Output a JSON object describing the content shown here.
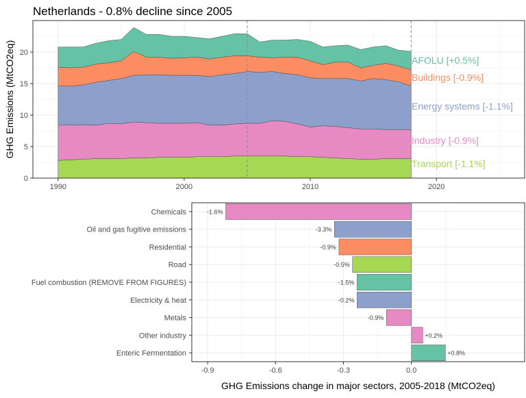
{
  "title": "Netherlands - 0.8% decline since 2005",
  "colors": {
    "AFOLU": "#66c2a5",
    "Buildings": "#fc8d62",
    "Energy": "#8da0cb",
    "Industry": "#e78ac3",
    "Transport": "#a6d854",
    "vline": "#8a8a8a"
  },
  "chart_data": [
    {
      "type": "area",
      "stacked": true,
      "ylabel": "GHG Emissions (MtCO2eq)",
      "xlim": [
        1988,
        2027
      ],
      "ylim": [
        0,
        25
      ],
      "x_ticks": [
        1990,
        2000,
        2010,
        2020
      ],
      "x_tick_labels": [
        "1990",
        "2000",
        "2010",
        "2020"
      ],
      "y_ticks": [
        0,
        5,
        10,
        15,
        20
      ],
      "y_tick_labels": [
        "0",
        "5",
        "10",
        "15",
        "20"
      ],
      "vlines": [
        2005,
        2018
      ],
      "x": [
        1990,
        1991,
        1992,
        1993,
        1994,
        1995,
        1996,
        1997,
        1998,
        1999,
        2000,
        2001,
        2002,
        2003,
        2004,
        2005,
        2006,
        2007,
        2008,
        2009,
        2010,
        2011,
        2012,
        2013,
        2014,
        2015,
        2016,
        2017,
        2018
      ],
      "series": [
        {
          "key": "Transport",
          "name": "Transport [-1.1%]",
          "values": [
            2.8,
            2.9,
            3.0,
            3.1,
            3.1,
            3.1,
            3.2,
            3.2,
            3.3,
            3.3,
            3.3,
            3.4,
            3.4,
            3.4,
            3.5,
            3.5,
            3.5,
            3.5,
            3.5,
            3.4,
            3.4,
            3.3,
            3.2,
            3.1,
            3.0,
            3.0,
            3.1,
            3.1,
            3.1
          ]
        },
        {
          "key": "Industry",
          "name": "Industry [-0.9%]",
          "values": [
            5.6,
            5.5,
            5.4,
            5.3,
            5.6,
            5.5,
            5.7,
            5.6,
            5.4,
            5.4,
            5.4,
            5.4,
            5.0,
            5.0,
            5.1,
            5.2,
            5.2,
            5.6,
            5.5,
            5.2,
            4.7,
            5.0,
            5.0,
            4.9,
            4.8,
            4.8,
            4.6,
            4.6,
            4.6
          ]
        },
        {
          "key": "Energy",
          "name": "Energy systems [-1.1%]",
          "values": [
            6.2,
            6.2,
            6.4,
            6.8,
            6.8,
            7.2,
            7.4,
            7.6,
            7.7,
            7.6,
            7.6,
            7.5,
            7.7,
            8.0,
            8.0,
            8.2,
            8.1,
            7.8,
            7.6,
            7.8,
            7.8,
            7.5,
            7.6,
            7.8,
            7.6,
            8.0,
            7.9,
            7.6,
            6.9
          ]
        },
        {
          "key": "Buildings",
          "name": "Buildings [-0.9%]",
          "values": [
            3.0,
            2.9,
            2.8,
            2.9,
            2.8,
            2.8,
            3.8,
            2.8,
            2.8,
            2.7,
            2.8,
            2.9,
            2.8,
            2.8,
            2.8,
            2.5,
            2.4,
            2.2,
            2.6,
            2.8,
            2.7,
            2.2,
            2.6,
            2.6,
            2.1,
            2.1,
            2.6,
            2.5,
            2.6
          ]
        },
        {
          "key": "AFOLU",
          "name": "AFOLU [+0.5%]",
          "values": [
            3.2,
            3.3,
            3.2,
            3.3,
            3.5,
            3.4,
            3.8,
            3.6,
            3.6,
            3.5,
            3.4,
            3.1,
            3.2,
            3.3,
            3.5,
            3.5,
            2.4,
            2.8,
            2.7,
            2.8,
            3.1,
            2.8,
            2.6,
            2.7,
            2.9,
            2.9,
            2.8,
            2.5,
            2.9
          ]
        }
      ]
    },
    {
      "type": "bar",
      "orientation": "horizontal",
      "xlabel": "GHG Emissions change in major sectors, 2005-2018 (MtCO2eq)",
      "xlim": [
        -0.97,
        0.5
      ],
      "x_ticks": [
        -0.9,
        -0.6,
        -0.3,
        0.0
      ],
      "x_tick_labels": [
        "-0.9",
        "-0.6",
        "-0.3",
        "0.0"
      ],
      "categories": [
        "Chemicals",
        "Oil and gas fugitive emissions",
        "Residential",
        "Road",
        "Fuel combustion (REMOVE FROM FIGURES)",
        "Electricity & heat",
        "Metals",
        "Other industry",
        "Enteric Fermentation"
      ],
      "values": [
        -0.82,
        -0.34,
        -0.32,
        -0.26,
        -0.24,
        -0.24,
        -0.11,
        0.05,
        0.15
      ],
      "value_labels": [
        "-1.6%",
        "-3.3%",
        "-0.9%",
        "-0.5%",
        "-1.5%",
        "-0.2%",
        "-0.9%",
        "+0.2%",
        "+0.8%"
      ],
      "sectors": [
        "Industry",
        "Energy",
        "Buildings",
        "Transport",
        "AFOLU",
        "Energy",
        "Industry",
        "Industry",
        "AFOLU"
      ]
    }
  ]
}
